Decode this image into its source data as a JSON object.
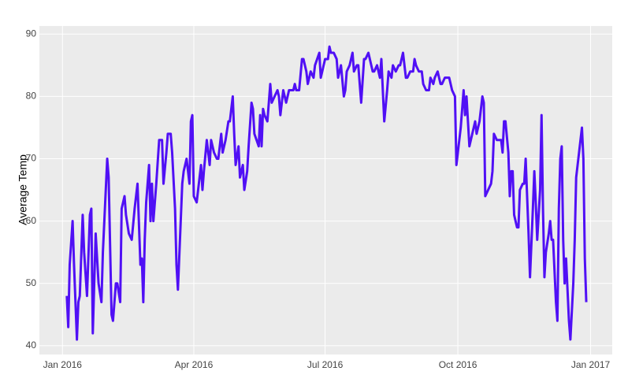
{
  "chart_data": {
    "type": "line",
    "y_label": "Average Temp",
    "color": "#5010f5",
    "grid": true,
    "xlim": [
      -16,
      381
    ],
    "ylim": [
      38.6,
      91.3
    ],
    "xticks": [
      {
        "value": 0,
        "label": "Jan 2016"
      },
      {
        "value": 91,
        "label": "Apr 2016"
      },
      {
        "value": 182,
        "label": "Jul 2016"
      },
      {
        "value": 274,
        "label": "Oct 2016"
      },
      {
        "value": 366,
        "label": "Jan 2017"
      }
    ],
    "yticks": [
      40,
      50,
      60,
      70,
      80,
      90
    ],
    "x": [
      3,
      4,
      5,
      7,
      8,
      10,
      11,
      12,
      14,
      15,
      17,
      19,
      20,
      21,
      23,
      25,
      27,
      28,
      31,
      32,
      34,
      35,
      37,
      38,
      40,
      41,
      43,
      44,
      46,
      48,
      50,
      52,
      54,
      55,
      56,
      57,
      58,
      60,
      61,
      62,
      63,
      65,
      67,
      69,
      70,
      72,
      73,
      75,
      76,
      78,
      79,
      80,
      83,
      84,
      86,
      88,
      89,
      90,
      91,
      93,
      96,
      97,
      98,
      100,
      102,
      103,
      105,
      107,
      108,
      110,
      111,
      113,
      115,
      116,
      118,
      119,
      120,
      122,
      123,
      125,
      126,
      128,
      129,
      131,
      132,
      133,
      136,
      137,
      138,
      139,
      140,
      142,
      144,
      145,
      147,
      149,
      150,
      151,
      153,
      155,
      157,
      158,
      160,
      161,
      162,
      164,
      166,
      167,
      169,
      170,
      172,
      174,
      175,
      178,
      179,
      180,
      182,
      184,
      185,
      186,
      188,
      190,
      191,
      193,
      195,
      196,
      197,
      199,
      201,
      202,
      204,
      205,
      207,
      209,
      210,
      212,
      214,
      215,
      216,
      218,
      220,
      221,
      223,
      225,
      226,
      228,
      229,
      231,
      233,
      234,
      236,
      238,
      239,
      241,
      243,
      244,
      245,
      247,
      249,
      250,
      252,
      254,
      255,
      257,
      258,
      260,
      262,
      263,
      265,
      267,
      268,
      270,
      272,
      273,
      274,
      276,
      278,
      279,
      280,
      281,
      282,
      284,
      286,
      287,
      289,
      291,
      292,
      293,
      295,
      297,
      298,
      299,
      301,
      302,
      304,
      305,
      306,
      307,
      309,
      310,
      311,
      312,
      313,
      315,
      316,
      317,
      319,
      320,
      321,
      323,
      324,
      326,
      327,
      328,
      329,
      331,
      332,
      333,
      334,
      335,
      337,
      338,
      339,
      340,
      342,
      343,
      344,
      345,
      346,
      347,
      348,
      349,
      350,
      351,
      352,
      354,
      355,
      356,
      358,
      360,
      361,
      362,
      363
    ],
    "values": [
      48,
      43,
      53,
      60,
      53,
      41,
      47,
      48,
      61,
      55,
      48,
      61,
      62,
      42,
      58,
      50,
      47,
      55,
      70,
      67,
      45,
      44,
      50,
      50,
      47,
      62,
      64,
      61,
      58,
      57,
      62,
      66,
      53,
      54,
      47,
      57,
      63,
      69,
      60,
      66,
      60,
      66,
      73,
      73,
      66,
      71,
      74,
      74,
      71,
      62,
      53,
      49,
      66,
      68,
      70,
      66,
      76,
      77,
      64,
      63,
      69,
      65,
      68,
      73,
      69,
      73,
      71,
      70,
      70,
      74,
      71,
      73,
      76,
      76,
      80,
      74,
      69,
      72,
      67,
      69,
      65,
      68,
      72,
      79,
      78,
      74,
      72,
      77,
      72,
      78,
      77,
      76,
      82,
      79,
      80,
      81,
      80,
      77,
      81,
      79,
      81,
      81,
      81,
      82,
      81,
      81,
      86,
      86,
      84,
      82,
      84,
      83,
      85,
      87,
      83,
      84,
      86,
      86,
      88,
      87,
      87,
      86,
      83,
      85,
      80,
      81,
      84,
      85,
      87,
      84,
      85,
      85,
      79,
      86,
      86,
      87,
      85,
      84,
      84,
      85,
      83,
      86,
      76,
      81,
      84,
      83,
      85,
      84,
      85,
      85,
      87,
      83,
      83,
      84,
      84,
      86,
      85,
      84,
      84,
      82,
      81,
      81,
      83,
      82,
      83,
      84,
      82,
      82,
      83,
      83,
      83,
      81,
      80,
      69,
      71,
      75,
      81,
      77,
      80,
      76,
      72,
      74,
      76,
      74,
      76,
      80,
      79,
      64,
      65,
      66,
      68,
      74,
      73,
      73,
      73,
      71,
      76,
      76,
      71,
      64,
      68,
      68,
      61,
      59,
      59,
      65,
      66,
      66,
      70,
      58,
      51,
      62,
      68,
      63,
      57,
      65,
      77,
      62,
      51,
      55,
      58,
      60,
      57,
      57,
      47,
      44,
      62,
      70,
      72,
      57,
      50,
      54,
      49,
      44,
      41,
      50,
      57,
      67,
      71,
      75,
      70,
      54,
      47
    ]
  }
}
